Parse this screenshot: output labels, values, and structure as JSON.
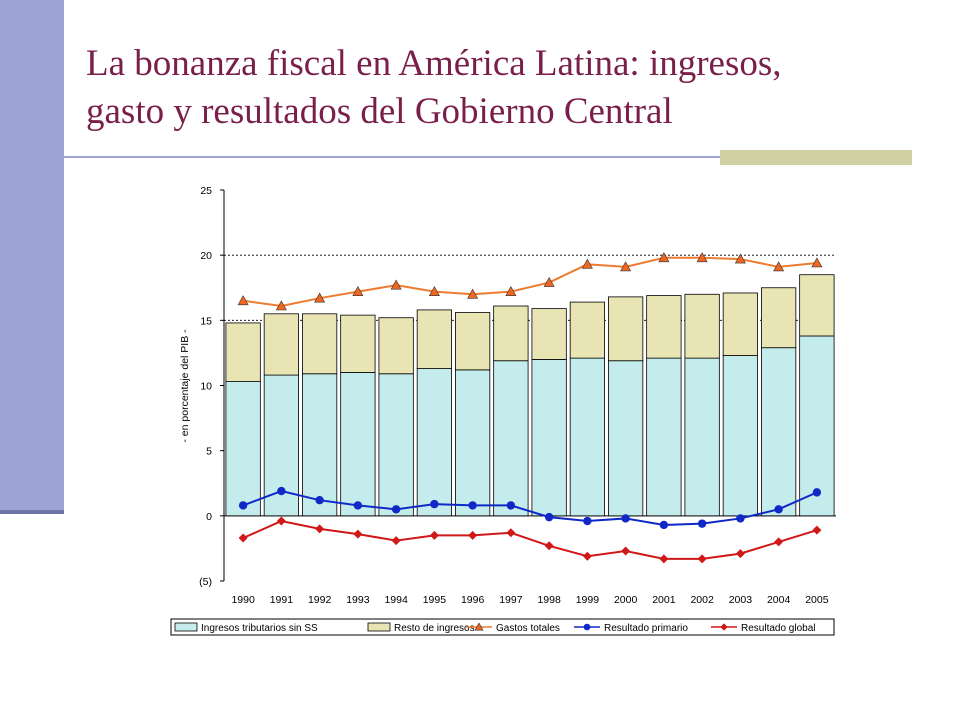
{
  "slide": {
    "title_line1": "La bonanza fiscal en América Latina: ingresos,",
    "title_line2": "gasto y resultados del Gobierno Central"
  },
  "colors": {
    "title": "#7a1f4a",
    "accent_bar": "#9ea3d6",
    "tax_fill": "#c4ecec",
    "rest_fill": "#e8e4b4",
    "gastos_line": "#ee7c30",
    "gastos_marker": "#ee6620",
    "primario": "#1028c8",
    "global": "#d01818"
  },
  "chart_data": {
    "type": "bar",
    "title": "",
    "ylabel": "- en porcentaje del PIB -",
    "xlabel": "",
    "ylim": [
      -5,
      25
    ],
    "yticks": [
      -5,
      0,
      5,
      10,
      15,
      20,
      25
    ],
    "ytick_labels": [
      "(5)",
      "0",
      "5",
      "10",
      "15",
      "20",
      "25"
    ],
    "gridlines_at": [
      15,
      20
    ],
    "categories": [
      "1990",
      "1991",
      "1992",
      "1993",
      "1994",
      "1995",
      "1996",
      "1997",
      "1998",
      "1999",
      "2000",
      "2001",
      "2002",
      "2003",
      "2004",
      "2005"
    ],
    "series": [
      {
        "name": "Ingresos tributarios sin SS",
        "kind": "stacked-bar",
        "values": [
          10.3,
          10.8,
          10.9,
          11.0,
          10.9,
          11.3,
          11.2,
          11.9,
          12.0,
          12.1,
          11.9,
          12.1,
          12.1,
          12.3,
          12.9,
          13.8
        ]
      },
      {
        "name": "Resto de ingresos",
        "kind": "stacked-bar",
        "values": [
          4.5,
          4.7,
          4.6,
          4.4,
          4.3,
          4.5,
          4.4,
          4.2,
          3.9,
          4.3,
          4.9,
          4.8,
          4.9,
          4.8,
          4.6,
          4.7
        ]
      },
      {
        "name": "Gastos totales",
        "kind": "line-triangle",
        "values": [
          16.5,
          16.1,
          16.7,
          17.2,
          17.7,
          17.2,
          17.0,
          17.2,
          17.9,
          19.3,
          19.1,
          19.8,
          19.8,
          19.7,
          19.1,
          19.4
        ]
      },
      {
        "name": "Resultado primario",
        "kind": "line-circle",
        "values": [
          0.8,
          1.9,
          1.2,
          0.8,
          0.5,
          0.9,
          0.8,
          0.8,
          -0.1,
          -0.4,
          -0.2,
          -0.7,
          -0.6,
          -0.2,
          0.5,
          1.8
        ]
      },
      {
        "name": "Resultado global",
        "kind": "line-diamond",
        "values": [
          -1.7,
          -0.4,
          -1.0,
          -1.4,
          -1.9,
          -1.5,
          -1.5,
          -1.3,
          -2.3,
          -3.1,
          -2.7,
          -3.3,
          -3.3,
          -2.9,
          -2.0,
          -1.1
        ]
      }
    ]
  }
}
